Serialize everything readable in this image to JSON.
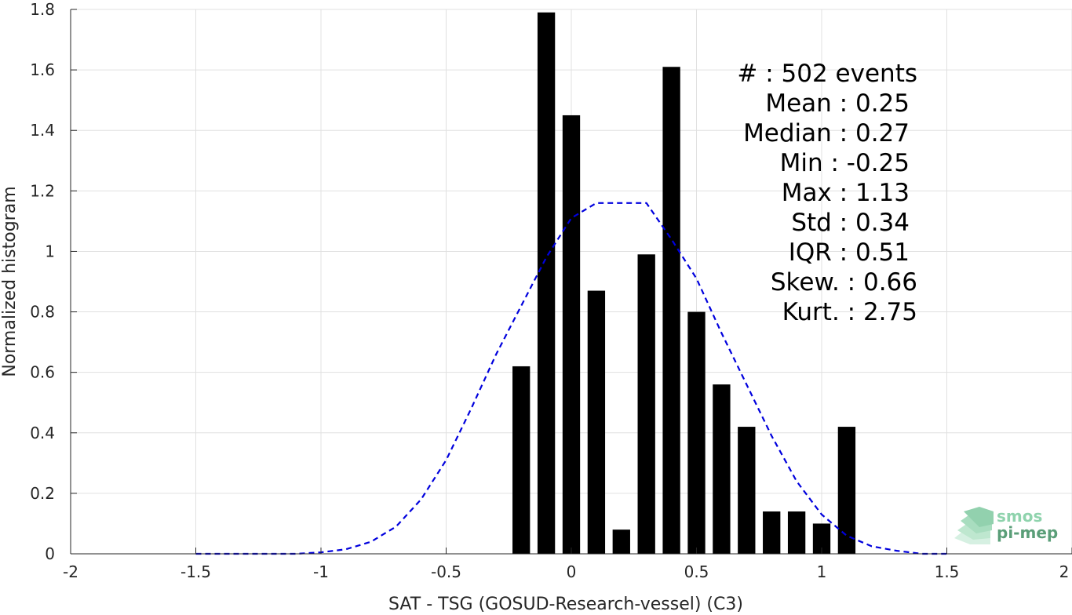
{
  "chart_data": {
    "type": "bar",
    "xlabel": "SAT - TSG (GOSUD-Research-vessel) (C3)",
    "ylabel": "Normalized histogram",
    "xlim": [
      -2,
      2
    ],
    "ylim": [
      0,
      1.8
    ],
    "grid": true,
    "x_ticks": [
      "-2",
      "-1.5",
      "-1",
      "-0.5",
      "0",
      "0.5",
      "1",
      "1.5",
      "2"
    ],
    "y_ticks": [
      "0",
      "0.2",
      "0.4",
      "0.6",
      "0.8",
      "1",
      "1.2",
      "1.4",
      "1.6",
      "1.8"
    ],
    "bar_color": "#000000",
    "bar_width": 0.07,
    "bars": {
      "x": [
        -0.2,
        -0.1,
        0.0,
        0.1,
        0.2,
        0.3,
        0.4,
        0.5,
        0.6,
        0.7,
        0.8,
        0.9,
        1.0,
        1.1
      ],
      "values": [
        0.62,
        1.79,
        1.45,
        0.87,
        0.08,
        0.99,
        1.61,
        0.8,
        0.56,
        0.42,
        0.14,
        0.14,
        0.1,
        0.42
      ]
    },
    "fit_curve": {
      "style": "dashed",
      "color": "#0000dd",
      "x": [
        -1.5,
        -1.4,
        -1.3,
        -1.2,
        -1.1,
        -1.0,
        -0.9,
        -0.8,
        -0.7,
        -0.6,
        -0.5,
        -0.4,
        -0.3,
        -0.2,
        -0.1,
        0.0,
        0.1,
        0.2,
        0.3,
        0.4,
        0.5,
        0.6,
        0.7,
        0.8,
        0.9,
        1.0,
        1.1,
        1.2,
        1.3,
        1.4,
        1.5
      ],
      "y": [
        0.0,
        0.0,
        0.0,
        0.0,
        0.0,
        0.005,
        0.015,
        0.04,
        0.09,
        0.18,
        0.31,
        0.48,
        0.66,
        0.82,
        0.98,
        1.11,
        1.16,
        1.16,
        1.16,
        1.04,
        0.91,
        0.73,
        0.56,
        0.39,
        0.24,
        0.13,
        0.06,
        0.025,
        0.01,
        0.0,
        0.0
      ]
    },
    "stats": [
      "#  : 502 events",
      "Mean : 0.25",
      "Median : 0.27",
      "Min : -0.25",
      "Max : 1.13",
      "Std : 0.34",
      "IQR : 0.51",
      "Skew. : 0.66",
      "Kurt. : 2.75"
    ]
  },
  "logo": {
    "line1": "smos",
    "line2": "pi-mep",
    "color_light": "#8fd3ad",
    "color_dark": "#5a9e78"
  }
}
